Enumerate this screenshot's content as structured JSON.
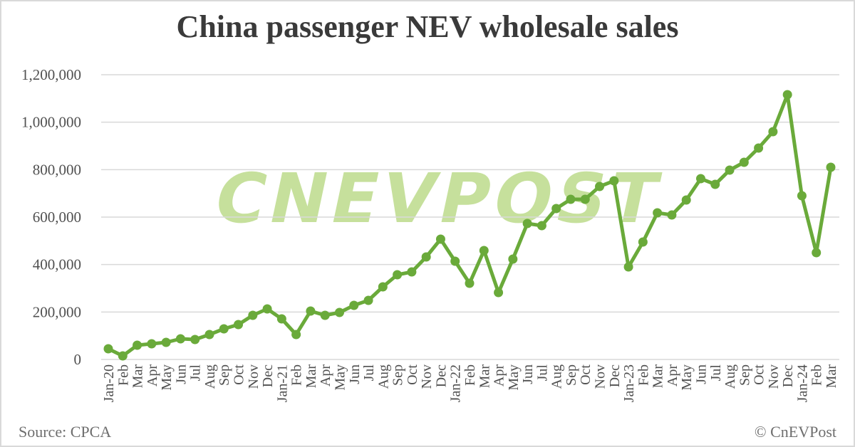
{
  "title": "China passenger NEV wholesale sales",
  "footer": {
    "source": "Source: CPCA",
    "credit": "© CnEVPost"
  },
  "watermark": "CNEVPOST",
  "colors": {
    "line": "#6aaa3a",
    "grid": "#d9d9d9",
    "watermark": "#c6e09c",
    "text": "#505050",
    "title": "#3a3a3a"
  },
  "chart_data": {
    "type": "line",
    "title": "China passenger NEV wholesale sales",
    "xlabel": "",
    "ylabel": "",
    "ylim": [
      0,
      1200000
    ],
    "yticks": [
      0,
      200000,
      400000,
      600000,
      800000,
      1000000,
      1200000
    ],
    "ytick_labels": [
      "0",
      "200,000",
      "400,000",
      "600,000",
      "800,000",
      "1,000,000",
      "1,200,000"
    ],
    "grid": true,
    "legend": null,
    "categories": [
      "Jan-20",
      "Feb",
      "Mar",
      "Apr",
      "May",
      "Jun",
      "Jul",
      "Aug",
      "Sep",
      "Oct",
      "Nov",
      "Dec",
      "Jan-21",
      "Feb",
      "Mar",
      "Apr",
      "May",
      "Jun",
      "Jul",
      "Aug",
      "Sep",
      "Oct",
      "Nov",
      "Dec",
      "Jan-22",
      "Feb",
      "Mar",
      "Apr",
      "May",
      "Jun",
      "Jul",
      "Aug",
      "Sep",
      "Oct",
      "Nov",
      "Dec",
      "Jan-23",
      "Feb",
      "Mar",
      "Apr",
      "May",
      "Jun",
      "Jul",
      "Aug",
      "Sep",
      "Oct",
      "Nov",
      "Dec",
      "Jan-24",
      "Feb",
      "Mar"
    ],
    "series": [
      {
        "name": "NEV wholesale sales",
        "values": [
          45000,
          15000,
          60000,
          66000,
          72000,
          87000,
          84000,
          105000,
          129000,
          147000,
          186000,
          213000,
          171000,
          105000,
          204000,
          186000,
          198000,
          228000,
          249000,
          306000,
          357000,
          369000,
          432000,
          507000,
          414000,
          321000,
          459000,
          282000,
          423000,
          573000,
          564000,
          636000,
          675000,
          675000,
          729000,
          753000,
          390000,
          495000,
          618000,
          609000,
          672000,
          762000,
          738000,
          798000,
          831000,
          891000,
          960000,
          1116000,
          690000,
          450000,
          810000
        ]
      }
    ],
    "source": "CPCA"
  }
}
